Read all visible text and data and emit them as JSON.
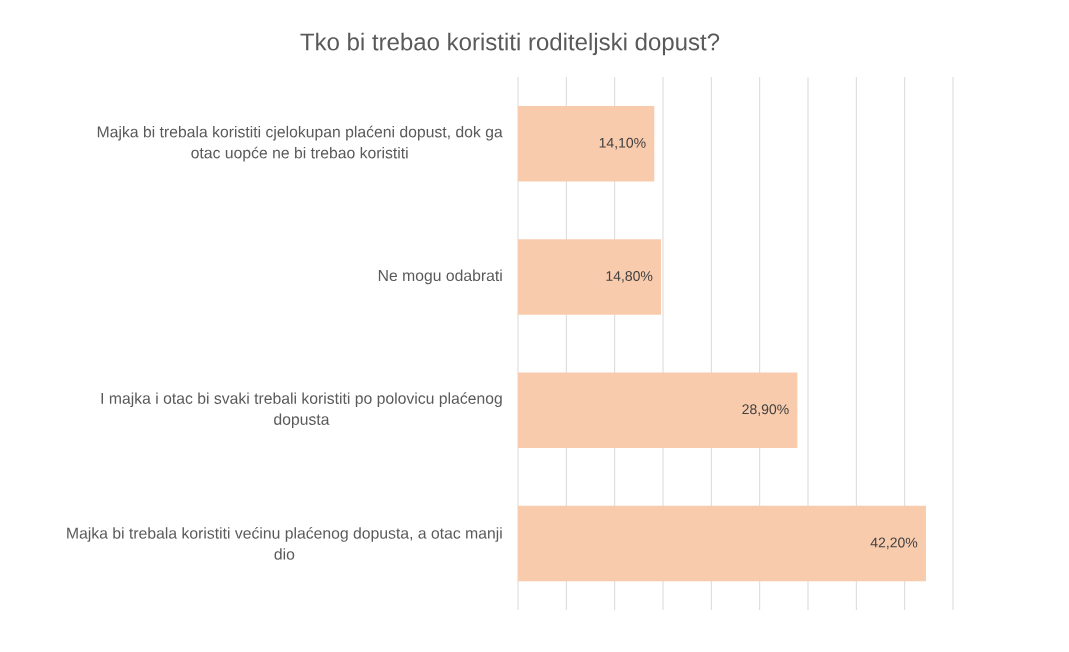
{
  "chart_data": {
    "type": "bar",
    "orientation": "horizontal",
    "title": "Tko bi trebao koristiti roditeljski dopust?",
    "categories": [
      "Majka bi trebala koristiti cjelokupan plaćeni dopust, dok ga otac uopće ne bi trebao koristiti",
      "Ne mogu odabrati",
      "I majka i otac bi svaki trebali koristiti po polovicu plaćenog dopusta",
      "Majka bi trebala koristiti većinu plaćenog dopusta, a otac manji dio"
    ],
    "values": [
      14.1,
      14.8,
      28.9,
      42.2
    ],
    "value_labels": [
      "14,10%",
      "14,80%",
      "28,90%",
      "42,20%"
    ],
    "color": "#f8cbad",
    "xlim": [
      0,
      45
    ],
    "xticks": [
      {
        "value": 0,
        "label": null
      },
      {
        "value": 5,
        "label": null
      },
      {
        "value": 10,
        "label": null
      },
      {
        "value": 15,
        "label": null
      },
      {
        "value": 20,
        "label": null
      },
      {
        "value": 25,
        "label": null
      },
      {
        "value": 30,
        "label": null
      },
      {
        "value": 35,
        "label": null
      },
      {
        "value": 40,
        "label": null
      },
      {
        "value": 45,
        "label": null
      }
    ],
    "grid": "x",
    "tick_labels": "y"
  }
}
